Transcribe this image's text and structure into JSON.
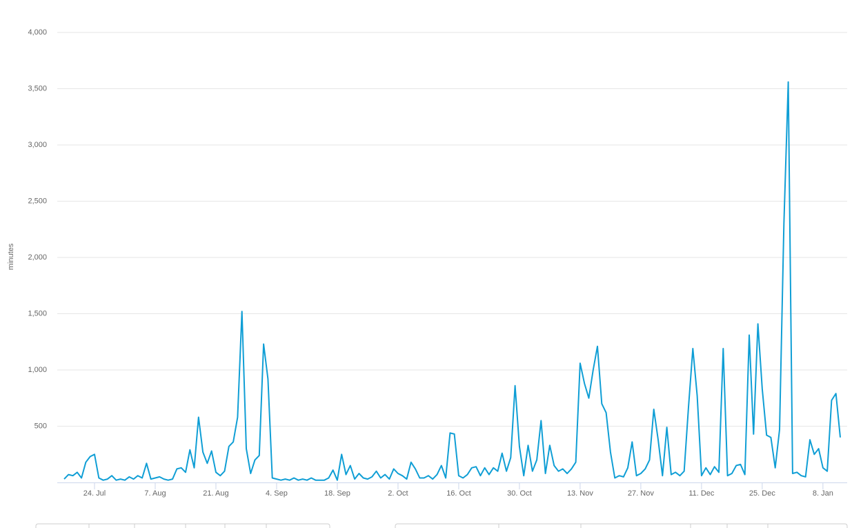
{
  "chart_data": {
    "type": "line",
    "y_label": "minutes",
    "color": "#0f9ed5",
    "grid": true,
    "ylim": [
      0,
      4000
    ],
    "yticks": [
      {
        "value": 500,
        "label": "500"
      },
      {
        "value": 1000,
        "label": "1,000"
      },
      {
        "value": 1500,
        "label": "1,500"
      },
      {
        "value": 2000,
        "label": "2,000"
      },
      {
        "value": 2500,
        "label": "2,500"
      },
      {
        "value": 3000,
        "label": "3,000"
      },
      {
        "value": 3500,
        "label": "3,500"
      },
      {
        "value": 4000,
        "label": "4,000"
      }
    ],
    "categories": [
      null,
      null,
      null,
      null,
      null,
      null,
      null,
      "24. Jul",
      null,
      null,
      null,
      null,
      null,
      null,
      null,
      null,
      null,
      null,
      null,
      null,
      null,
      "7. Aug",
      null,
      null,
      null,
      null,
      null,
      null,
      null,
      null,
      null,
      null,
      null,
      null,
      null,
      "21. Aug",
      null,
      null,
      null,
      null,
      null,
      null,
      null,
      null,
      null,
      null,
      null,
      null,
      null,
      "4. Sep",
      null,
      null,
      null,
      null,
      null,
      null,
      null,
      null,
      null,
      null,
      null,
      null,
      null,
      "18. Sep",
      null,
      null,
      null,
      null,
      null,
      null,
      null,
      null,
      null,
      null,
      null,
      null,
      null,
      "2. Oct",
      null,
      null,
      null,
      null,
      null,
      null,
      null,
      null,
      null,
      null,
      null,
      null,
      null,
      "16. Oct",
      null,
      null,
      null,
      null,
      null,
      null,
      null,
      null,
      null,
      null,
      null,
      null,
      null,
      "30. Oct",
      null,
      null,
      null,
      null,
      null,
      null,
      null,
      null,
      null,
      null,
      null,
      null,
      null,
      "13. Nov",
      null,
      null,
      null,
      null,
      null,
      null,
      null,
      null,
      null,
      null,
      null,
      null,
      null,
      "27. Nov",
      null,
      null,
      null,
      null,
      null,
      null,
      null,
      null,
      null,
      null,
      null,
      null,
      null,
      "11. Dec",
      null,
      null,
      null,
      null,
      null,
      null,
      null,
      null,
      null,
      null,
      null,
      null,
      null,
      "25. Dec",
      null,
      null,
      null,
      null,
      null,
      null,
      null,
      null,
      null,
      null,
      null,
      null,
      null,
      "8. Jan",
      null,
      null,
      null,
      null
    ],
    "values": [
      30,
      70,
      60,
      90,
      40,
      180,
      230,
      250,
      40,
      20,
      30,
      60,
      20,
      30,
      20,
      50,
      30,
      60,
      40,
      170,
      30,
      40,
      50,
      30,
      20,
      30,
      120,
      130,
      90,
      290,
      130,
      580,
      270,
      170,
      280,
      90,
      60,
      100,
      320,
      360,
      580,
      1520,
      300,
      80,
      200,
      240,
      1230,
      920,
      40,
      30,
      20,
      30,
      20,
      40,
      20,
      30,
      20,
      40,
      20,
      20,
      20,
      40,
      110,
      20,
      250,
      70,
      150,
      30,
      80,
      40,
      30,
      50,
      100,
      40,
      70,
      30,
      120,
      80,
      60,
      30,
      180,
      120,
      40,
      40,
      60,
      30,
      70,
      150,
      40,
      440,
      430,
      60,
      40,
      70,
      130,
      140,
      60,
      130,
      70,
      130,
      100,
      260,
      100,
      220,
      860,
      320,
      60,
      330,
      100,
      200,
      550,
      80,
      330,
      150,
      100,
      120,
      80,
      120,
      180,
      1060,
      880,
      750,
      1000,
      1210,
      700,
      620,
      270,
      40,
      60,
      50,
      130,
      360,
      60,
      80,
      120,
      200,
      650,
      380,
      60,
      490,
      70,
      90,
      60,
      100,
      670,
      1190,
      770,
      60,
      130,
      70,
      140,
      90,
      1190,
      60,
      80,
      150,
      160,
      70,
      1310,
      430,
      1410,
      830,
      420,
      400,
      130,
      470,
      2300,
      3560,
      80,
      90,
      60,
      50,
      380,
      250,
      300,
      130,
      100,
      730,
      790,
      400
    ]
  }
}
